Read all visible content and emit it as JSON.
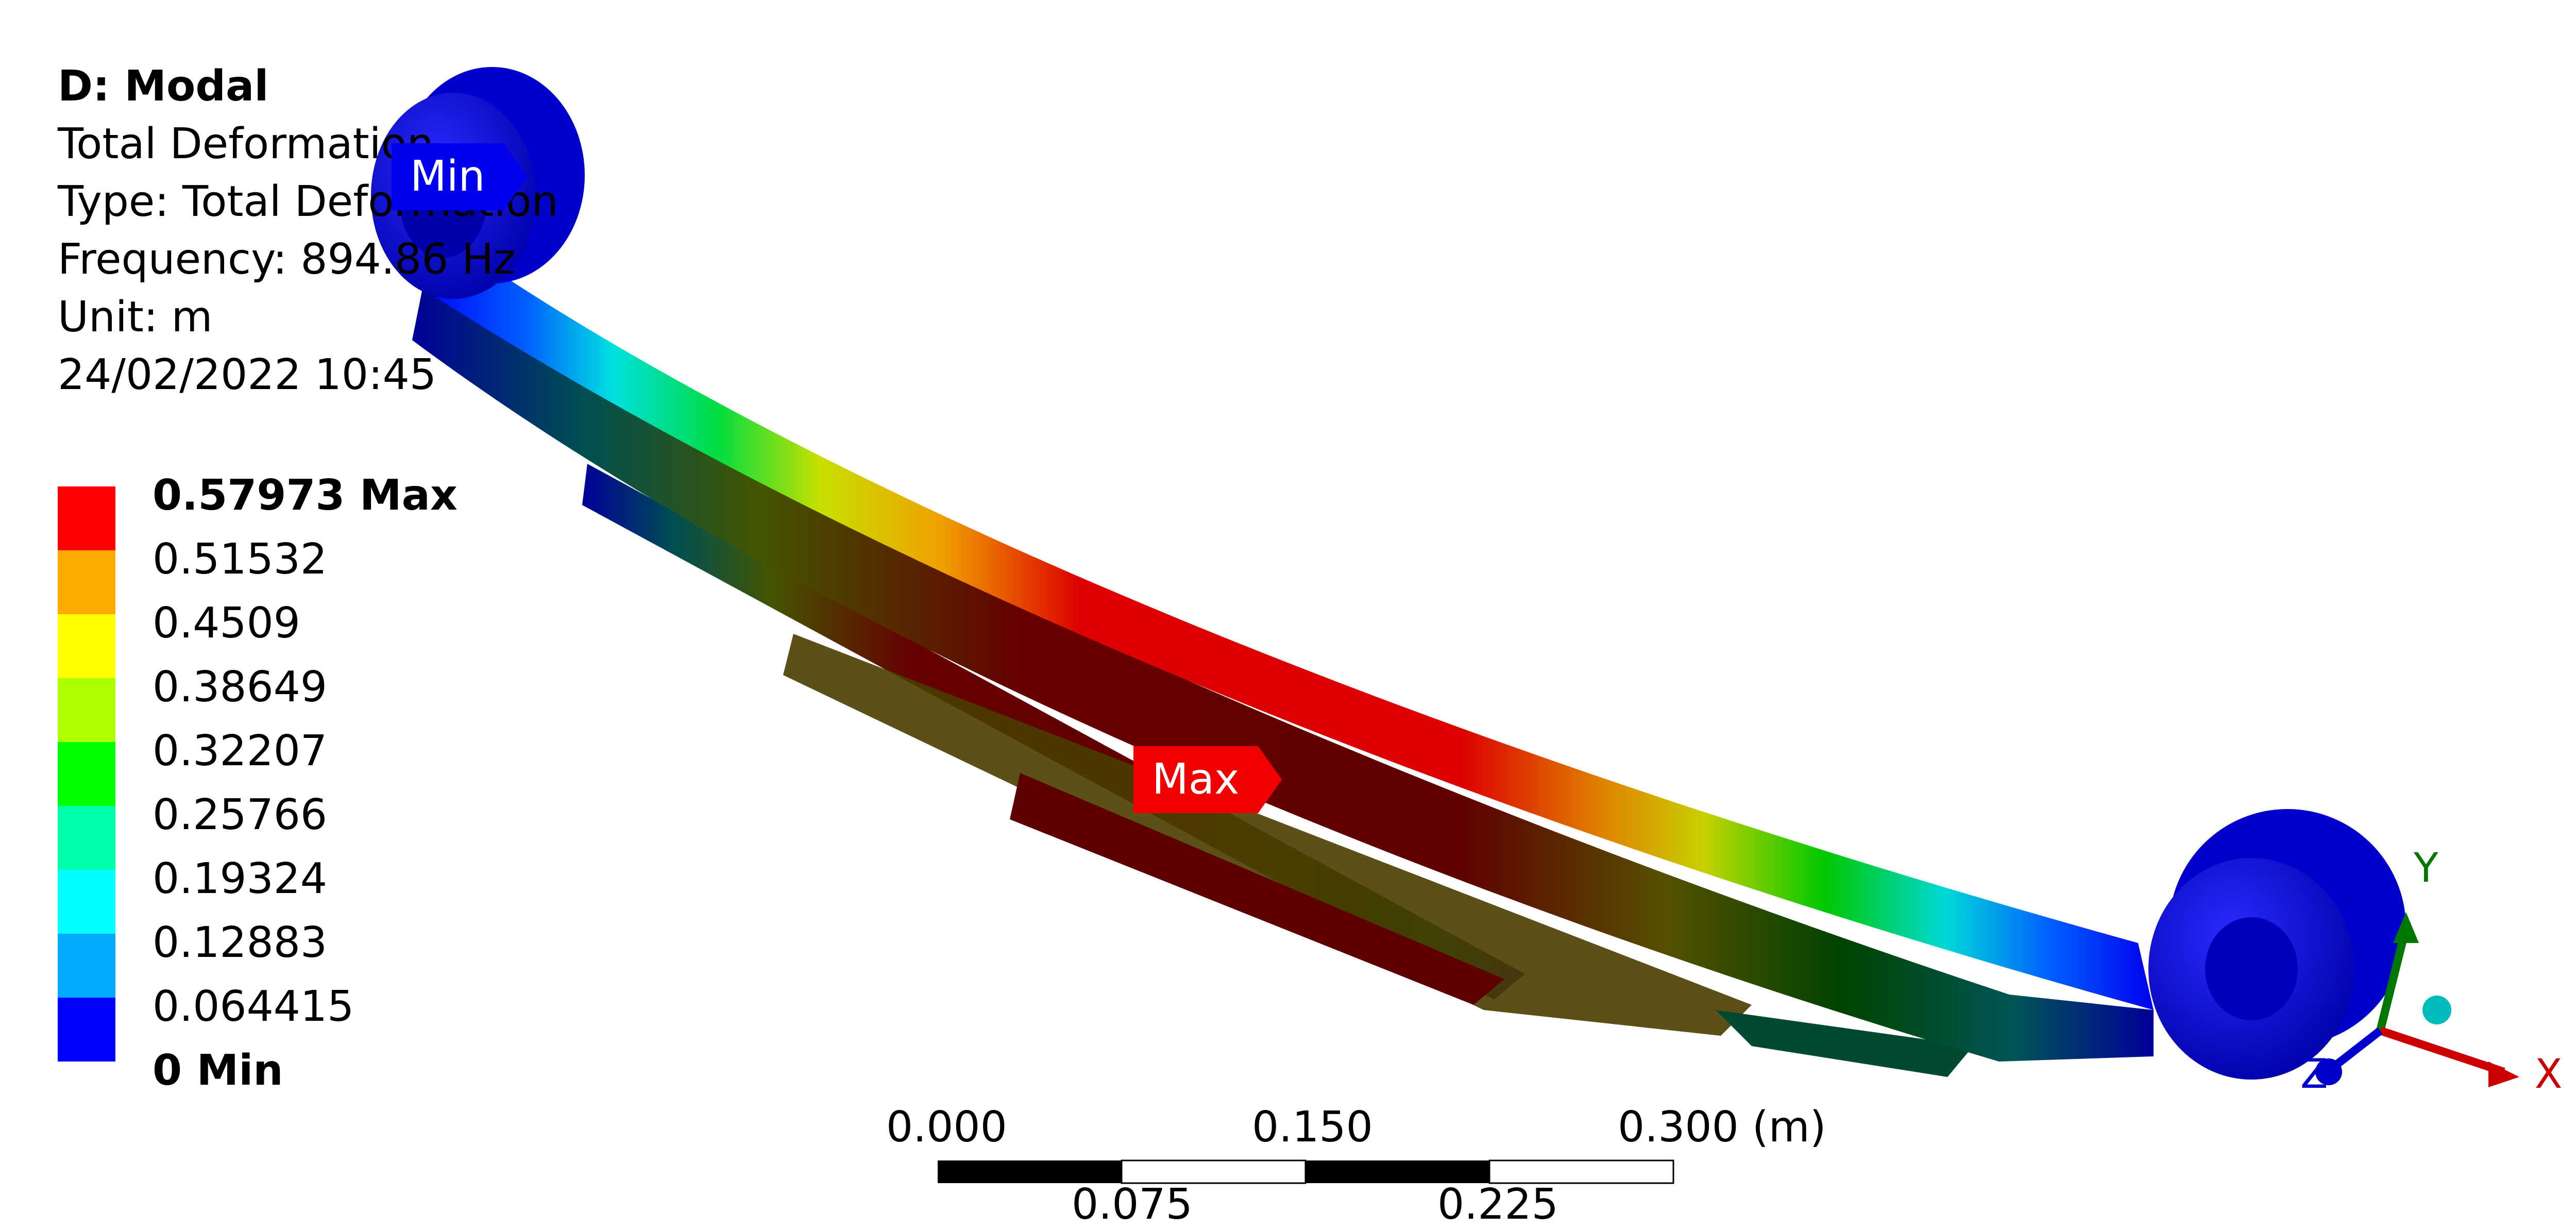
{
  "info": {
    "title": "D: Modal",
    "line1": "Total Deformation",
    "line2": "Type: Total Deformation",
    "line3": "Frequency: 894.86 Hz",
    "line4": "Unit: m",
    "line5": "24/02/2022 10:45"
  },
  "legend": {
    "entries": [
      {
        "label": "0.57973 Max",
        "color": "#ff0000"
      },
      {
        "label": "0.51532",
        "color": "#ffaa00"
      },
      {
        "label": "0.4509",
        "color": "#ffff00"
      },
      {
        "label": "0.38649",
        "color": "#aaff00"
      },
      {
        "label": "0.32207",
        "color": "#00ff00"
      },
      {
        "label": "0.25766",
        "color": "#00ffaa"
      },
      {
        "label": "0.19324",
        "color": "#00ffff"
      },
      {
        "label": "0.12883",
        "color": "#00aaff"
      },
      {
        "label": "0.064415",
        "color": "#0000ff"
      },
      {
        "label": "0 Min",
        "color": ""
      }
    ]
  },
  "tags": {
    "min": "Min",
    "max": "Max"
  },
  "scale": {
    "top_labels": [
      "0.000",
      "0.150",
      "0.300 (m)"
    ],
    "bottom_labels": [
      "0.075",
      "0.225"
    ]
  },
  "axes": {
    "x": "X",
    "y": "Y",
    "z": "Z"
  },
  "colors": {
    "max": "#ff0000",
    "min": "#0000ff"
  }
}
